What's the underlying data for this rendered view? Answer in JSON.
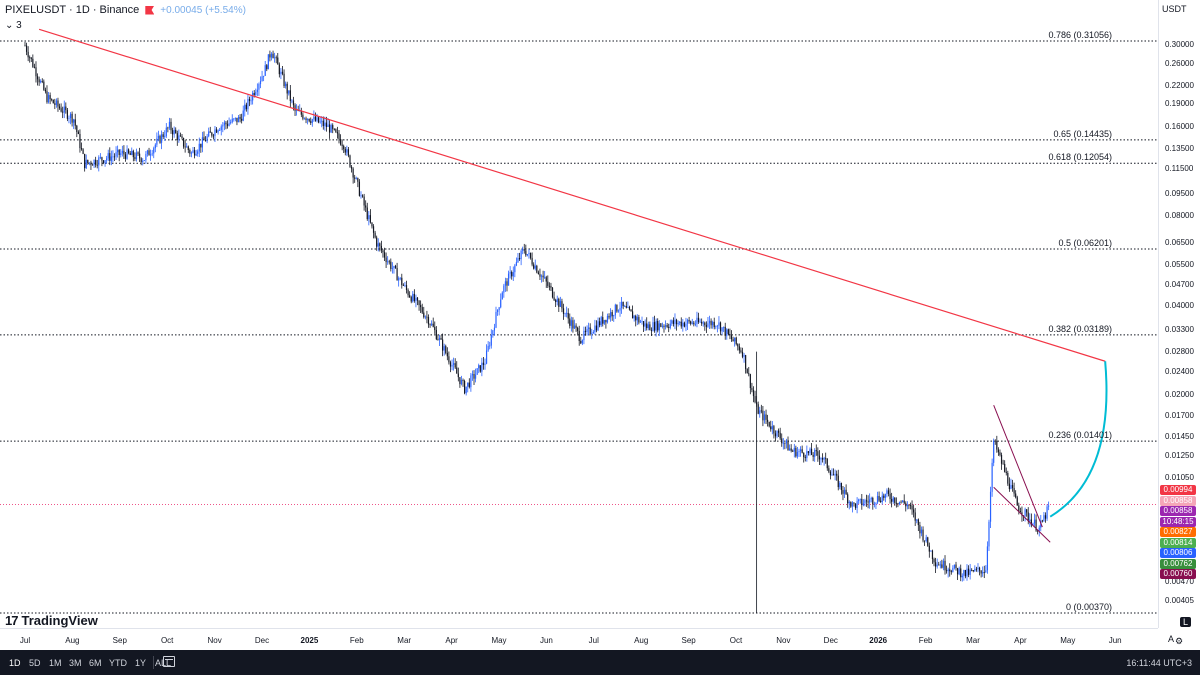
{
  "header": {
    "symbol": "PIXELUSDT · 1D · Binance",
    "change": "+0.00045 (+5.54%)",
    "indicator_count": "3",
    "accent": "#f23645"
  },
  "logo": {
    "mark": "17",
    "text": "TradingView"
  },
  "price_axis": {
    "currency": "USDT",
    "ticks": [
      "0.30000",
      "0.26000",
      "0.22000",
      "0.19000",
      "0.16000",
      "0.13500",
      "0.11500",
      "0.09500",
      "0.08000",
      "0.06500",
      "0.05500",
      "0.04700",
      "0.04000",
      "0.03300",
      "0.02800",
      "0.02400",
      "0.02000",
      "0.01700",
      "0.01450",
      "0.01250",
      "0.01050",
      "0.00470",
      "0.00405"
    ],
    "badges": [
      {
        "text": "0.00994",
        "color": "#f23645"
      },
      {
        "text": "0.00858",
        "color": "#f5a6b8"
      },
      {
        "text": "0.00858",
        "color": "#9c27b0"
      },
      {
        "text": "10:48:15",
        "color": "#9c27b0"
      },
      {
        "text": "0.00827",
        "color": "#ff6d00"
      },
      {
        "text": "0.00814",
        "color": "#4caf50"
      },
      {
        "text": "0.00806",
        "color": "#2962ff"
      },
      {
        "text": "0.00762",
        "color": "#388e3c"
      },
      {
        "text": "0.00760",
        "color": "#880e4f"
      }
    ]
  },
  "fib_levels": [
    {
      "label": "0.786 (0.31056)",
      "value": 0.31056
    },
    {
      "label": "0.65 (0.14435)",
      "value": 0.14435
    },
    {
      "label": "0.618 (0.12054)",
      "value": 0.12054
    },
    {
      "label": "0.5 (0.06201)",
      "value": 0.06201
    },
    {
      "label": "0.382 (0.03189)",
      "value": 0.03189
    },
    {
      "label": "0.236 (0.01401)",
      "value": 0.01401
    },
    {
      "label": "0 (0.00370)",
      "value": 0.0037
    }
  ],
  "time_axis": {
    "ticks": [
      {
        "label": "Jul",
        "bold": false
      },
      {
        "label": "Aug",
        "bold": false
      },
      {
        "label": "Sep",
        "bold": false
      },
      {
        "label": "Oct",
        "bold": false
      },
      {
        "label": "Nov",
        "bold": false
      },
      {
        "label": "Dec",
        "bold": false
      },
      {
        "label": "2025",
        "bold": true
      },
      {
        "label": "Feb",
        "bold": false
      },
      {
        "label": "Mar",
        "bold": false
      },
      {
        "label": "Apr",
        "bold": false
      },
      {
        "label": "May",
        "bold": false
      },
      {
        "label": "Jun",
        "bold": false
      },
      {
        "label": "Jul",
        "bold": false
      },
      {
        "label": "Aug",
        "bold": false
      },
      {
        "label": "Sep",
        "bold": false
      },
      {
        "label": "Oct",
        "bold": false
      },
      {
        "label": "Nov",
        "bold": false
      },
      {
        "label": "Dec",
        "bold": false
      },
      {
        "label": "2026",
        "bold": true
      },
      {
        "label": "Feb",
        "bold": false
      },
      {
        "label": "Mar",
        "bold": false
      },
      {
        "label": "Apr",
        "bold": false
      },
      {
        "label": "May",
        "bold": false
      },
      {
        "label": "Jun",
        "bold": false
      }
    ],
    "auto_label": "A",
    "log_label": "L"
  },
  "bottom_bar": {
    "ranges": [
      "1D",
      "5D",
      "1M",
      "3M",
      "6M",
      "YTD",
      "1Y",
      "ALL"
    ],
    "clock": "16:11:44 UTC+3"
  },
  "colors": {
    "up": "#089981",
    "down": "#131722",
    "wick_up": "#2962ff",
    "trendline": "#f23645",
    "arc": "#00bcd4",
    "wedge": "#880e4f",
    "current_price_line": "#e91e63"
  },
  "chart_data": {
    "type": "candlestick",
    "scale": "log",
    "series": [
      {
        "name": "PIXELUSDT",
        "points": [
          [
            "2024-07-01",
            0.3
          ],
          [
            "2024-07-15",
            0.2
          ],
          [
            "2024-08-01",
            0.17
          ],
          [
            "2024-08-08",
            0.12
          ],
          [
            "2024-09-01",
            0.13
          ],
          [
            "2024-09-15",
            0.125
          ],
          [
            "2024-10-01",
            0.16
          ],
          [
            "2024-10-15",
            0.13
          ],
          [
            "2024-11-01",
            0.16
          ],
          [
            "2024-11-15",
            0.17
          ],
          [
            "2024-12-01",
            0.25
          ],
          [
            "2024-12-05",
            0.29
          ],
          [
            "2024-12-20",
            0.18
          ],
          [
            "2025-01-10",
            0.16
          ],
          [
            "2025-01-20",
            0.14
          ],
          [
            "2025-02-01",
            0.09
          ],
          [
            "2025-02-10",
            0.065
          ],
          [
            "2025-03-01",
            0.045
          ],
          [
            "2025-03-15",
            0.036
          ],
          [
            "2025-04-07",
            0.021
          ],
          [
            "2025-04-20",
            0.026
          ],
          [
            "2025-05-01",
            0.045
          ],
          [
            "2025-05-15",
            0.062
          ],
          [
            "2025-06-01",
            0.045
          ],
          [
            "2025-06-20",
            0.031
          ],
          [
            "2025-07-15",
            0.04
          ],
          [
            "2025-08-01",
            0.034
          ],
          [
            "2025-08-20",
            0.035
          ],
          [
            "2025-09-15",
            0.035
          ],
          [
            "2025-10-01",
            0.028
          ],
          [
            "2025-10-10",
            0.018
          ],
          [
            "2025-11-01",
            0.013
          ],
          [
            "2025-11-20",
            0.0125
          ],
          [
            "2025-12-10",
            0.0085
          ],
          [
            "2026-01-01",
            0.0092
          ],
          [
            "2026-01-15",
            0.0085
          ],
          [
            "2026-02-01",
            0.0055
          ],
          [
            "2026-02-20",
            0.005
          ],
          [
            "2026-03-05",
            0.0052
          ],
          [
            "2026-03-10",
            0.014
          ],
          [
            "2026-03-25",
            0.0085
          ],
          [
            "2026-04-08",
            0.0071
          ],
          [
            "2026-04-15",
            0.00858
          ]
        ]
      }
    ]
  }
}
